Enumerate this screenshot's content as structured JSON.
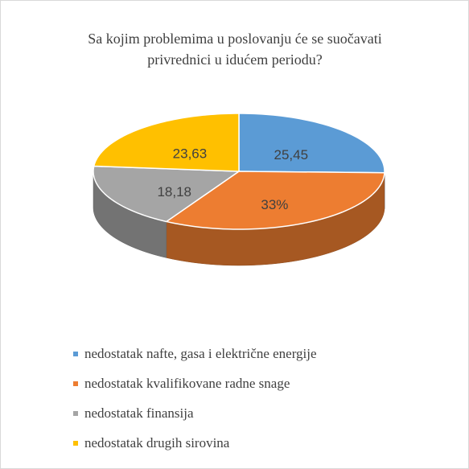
{
  "chart_data": {
    "type": "pie",
    "title": "Sa kojim problemima u poslovanju će se suočavati privrednici u idućem periodu?",
    "categories": [
      "nedostatak nafte, gasa i električne energije",
      "nedostatak kvalifikovane radne snage",
      "nedostatak finansija",
      "nedostatak drugih sirovina"
    ],
    "values": [
      25.45,
      33,
      18.18,
      23.63
    ],
    "value_labels": [
      "25,45",
      "33%",
      "18,18",
      "23,63"
    ],
    "colors": [
      "#5b9bd5",
      "#ed7d31",
      "#a5a5a5",
      "#ffc000"
    ],
    "legend": "bottom"
  }
}
